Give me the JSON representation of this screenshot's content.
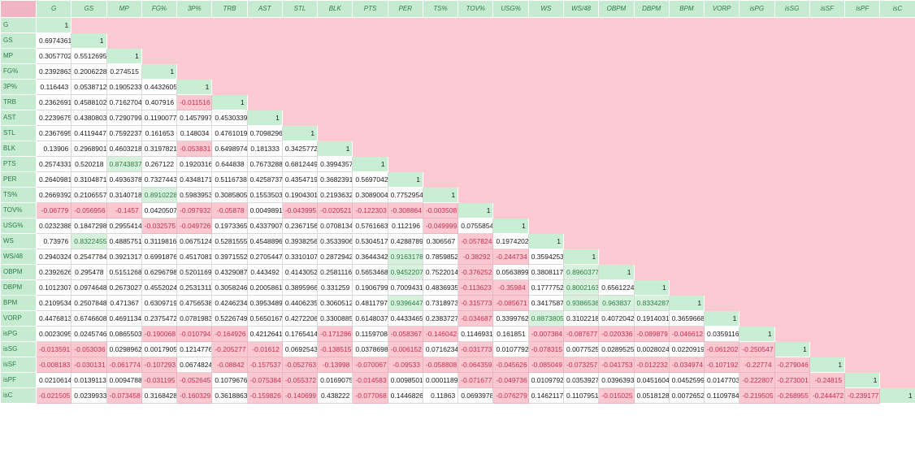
{
  "columns": [
    "G",
    "GS",
    "MP",
    "FG%",
    "3P%",
    "TRB",
    "AST",
    "STL",
    "BLK",
    "PTS",
    "PER",
    "TS%",
    "TOV%",
    "USG%",
    "WS",
    "WS/48",
    "OBPM",
    "DBPM",
    "BPM",
    "VORP",
    "isPG",
    "isSG",
    "isSF",
    "isPF",
    "isC"
  ],
  "matrix": [
    [
      "1"
    ],
    [
      "0.6974361",
      "1"
    ],
    [
      "0.3057702",
      "0.5512695",
      "1"
    ],
    [
      "0.2392863",
      "0.2006228",
      "0.274515",
      "1"
    ],
    [
      "0.116443",
      "0.0538712",
      "0.1905233",
      "0.4432605",
      "1"
    ],
    [
      "0.2362691",
      "0.4588102",
      "0.7162704",
      "0.407916",
      "-0.011516",
      "1"
    ],
    [
      "0.2239675",
      "0.4380803",
      "0.7290799",
      "0.1190077",
      "0.1457997",
      "0.4530339",
      "1"
    ],
    [
      "0.2367695",
      "0.4119447",
      "0.7592237",
      "0.161653",
      "0.148034",
      "0.4761019",
      "0.7098296",
      "1"
    ],
    [
      "0.13906",
      "0.2968901",
      "0.4603218",
      "0.3197821",
      "-0.053831",
      "0.6498974",
      "0.181333",
      "0.3425772",
      "1"
    ],
    [
      "0.2574331",
      "0.520218",
      "0.8743837",
      "0.267122",
      "0.1920316",
      "0.644838",
      "0.7673288",
      "0.6812449",
      "0.3994357",
      "1"
    ],
    [
      "0.2640981",
      "0.3104871",
      "0.4936378",
      "0.7327443",
      "0.4348171",
      "0.5116738",
      "0.4258737",
      "0.4354719",
      "0.3682391",
      "0.5697042",
      "1"
    ],
    [
      "0.2669392",
      "0.2106557",
      "0.3140718",
      "0.8910228",
      "0.5983953",
      "0.3085805",
      "0.1553503",
      "0.1904301",
      "0.2193632",
      "0.3089004",
      "0.7752954",
      "1"
    ],
    [
      "-0.06779",
      "-0.056956",
      "-0.1457",
      "0.0420507",
      "-0.097932",
      "-0.05878",
      "0.0049891",
      "-0.043995",
      "-0.020521",
      "-0.122303",
      "-0.308864",
      "-0.003508",
      "1"
    ],
    [
      "0.0232388",
      "0.1847298",
      "0.2955414",
      "-0.032575",
      "-0.049726",
      "0.1973365",
      "0.4337907",
      "0.2367156",
      "0.0708134",
      "0.5761663",
      "0.112196",
      "-0.049999",
      "0.0755854",
      "1"
    ],
    [
      "0.73976",
      "0.8322455",
      "0.4885751",
      "0.3119816",
      "0.0675124",
      "0.5281555",
      "0.4548896",
      "0.3938256",
      "0.3533906",
      "0.5304517",
      "0.4288789",
      "0.306567",
      "-0.057824",
      "0.1974202",
      "1"
    ],
    [
      "0.2940324",
      "0.2547784",
      "0.3921317",
      "0.6991876",
      "0.4517081",
      "0.3971552",
      "0.2705447",
      "0.3310107",
      "0.2872942",
      "0.3644342",
      "0.9163178",
      "0.7859852",
      "-0.38292",
      "-0.244734",
      "0.3594253",
      "1"
    ],
    [
      "0.2392626",
      "0.295478",
      "0.5151268",
      "0.6296798",
      "0.5201169",
      "0.4329087",
      "0.443492",
      "0.4143052",
      "0.2581116",
      "0.5653468",
      "0.9452207",
      "0.7522014",
      "-0.376252",
      "0.0563899",
      "0.3808117",
      "0.8960377",
      "1"
    ],
    [
      "0.1012307",
      "0.0974648",
      "0.2673027",
      "0.4552024",
      "0.2531311",
      "0.3058246",
      "0.2005861",
      "0.3895966",
      "0.331259",
      "0.1906799",
      "0.7009431",
      "0.4836935",
      "-0.113623",
      "-0.35984",
      "0.1777752",
      "0.8002163",
      "0.6561224",
      "1"
    ],
    [
      "0.2109534",
      "0.2507848",
      "0.471367",
      "0.6309719",
      "0.4756538",
      "0.4246234",
      "0.3953489",
      "0.4406235",
      "0.3060512",
      "0.4811797",
      "0.9396447",
      "0.7318973",
      "-0.315773",
      "-0.085671",
      "0.3417587",
      "0.9386538",
      "0.963837",
      "0.8334287",
      "1"
    ],
    [
      "0.4476813",
      "0.6746608",
      "0.4691134",
      "0.2375472",
      "0.0781983",
      "0.5226749",
      "0.5650167",
      "0.4272206",
      "0.3300885",
      "0.6148037",
      "0.4433465",
      "0.2383727",
      "-0.034687",
      "0.3399762",
      "0.8873805",
      "0.3102218",
      "0.4072042",
      "0.1914031",
      "0.3659668",
      "1"
    ],
    [
      "0.0023095",
      "0.0245746",
      "0.0865503",
      "-0.190068",
      "-0.010794",
      "-0.164926",
      "0.4212641",
      "0.1765414",
      "-0.171286",
      "0.1159708",
      "-0.058367",
      "-0.146042",
      "0.1146931",
      "0.161851",
      "-0.007384",
      "-0.087677",
      "-0.020336",
      "-0.089879",
      "-0.046612",
      "0.0359116",
      "1"
    ],
    [
      "-0.013591",
      "-0.053036",
      "0.0298962",
      "0.0017905",
      "0.1214776",
      "-0.205277",
      "-0.01612",
      "0.0692543",
      "-0.138515",
      "0.0378698",
      "-0.006152",
      "0.0716234",
      "-0.031773",
      "0.0107792",
      "-0.078315",
      "0.0077525",
      "0.0289525",
      "0.0028024",
      "0.0220919",
      "-0.061202",
      "-0.250547",
      "1"
    ],
    [
      "-0.008183",
      "-0.030131",
      "-0.061774",
      "-0.107293",
      "0.0674824",
      "-0.08842",
      "-0.157537",
      "-0.052763",
      "-0.13998",
      "-0.070067",
      "-0.09533",
      "-0.058808",
      "-0.064359",
      "-0.045626",
      "-0.085049",
      "-0.073257",
      "-0.041753",
      "-0.012232",
      "-0.034974",
      "-0.107192",
      "-0.22774",
      "-0.279046",
      "1"
    ],
    [
      "0.0210614",
      "0.0139113",
      "0.0094788",
      "-0.031195",
      "-0.052645",
      "0.1079676",
      "-0.075384",
      "-0.055372",
      "0.0169075",
      "-0.014583",
      "0.0098501",
      "0.0001189",
      "-0.071677",
      "-0.049736",
      "0.0109792",
      "0.0353927",
      "0.0396393",
      "0.0451604",
      "0.0452599",
      "0.0147703",
      "-0.222807",
      "-0.273001",
      "-0.24815",
      "1"
    ],
    [
      "-0.021505",
      "0.0239933",
      "-0.073458",
      "0.3168428",
      "-0.160329",
      "0.3618863",
      "-0.159826",
      "-0.140699",
      "0.438222",
      "-0.077068",
      "0.1446826",
      "0.11863",
      "0.0693978",
      "-0.076279",
      "0.1462117",
      "0.1107951",
      "-0.015025",
      "0.0518128",
      "0.0072652",
      "0.1109784",
      "-0.219505",
      "-0.268955",
      "-0.244472",
      "-0.239177",
      "1"
    ]
  ],
  "highlight_threshold": 0.8,
  "colors": {
    "header_bg": "#c5ecd0",
    "header_text": "#2f7a4a",
    "empty_bg": "#fdc9d3",
    "negative_bg": "#fbc8d2",
    "negative_text": "#c0304e",
    "high_bg": "#d6f2dc",
    "high_text": "#2e7d44"
  }
}
